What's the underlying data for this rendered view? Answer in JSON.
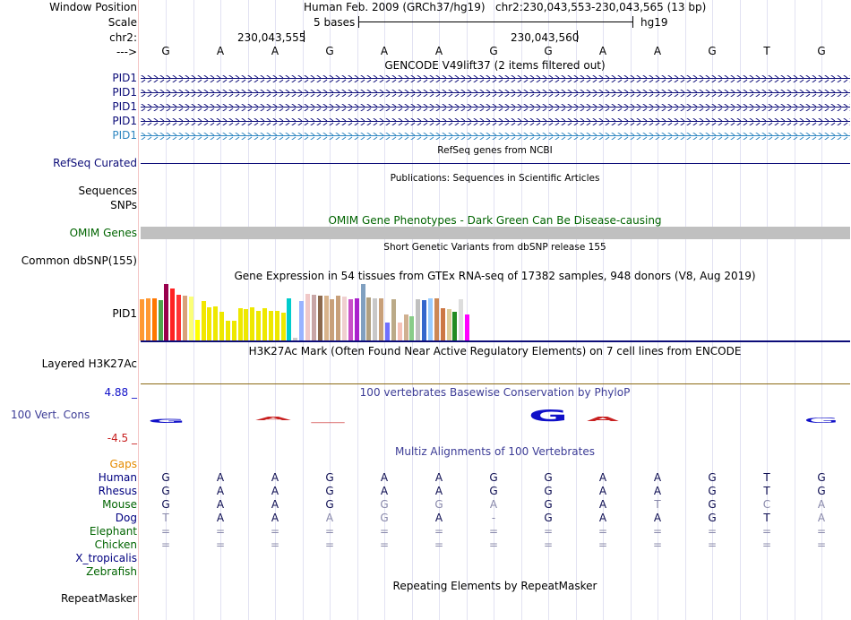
{
  "header": {
    "window_position_label": "Window Position",
    "scale_label": "Scale",
    "chrom_label": "chr2:",
    "arrow_label": "--->",
    "assembly": "Human Feb. 2009 (GRCh37/hg19)",
    "position": "chr2:230,043,553-230,043,565 (13 bp)",
    "scale_text": "5 bases",
    "db": "hg19",
    "coord_1": "230,043,555",
    "coord_2": "230,043,560"
  },
  "sequence": [
    "G",
    "A",
    "A",
    "G",
    "A",
    "A",
    "G",
    "G",
    "A",
    "A",
    "G",
    "T",
    "G"
  ],
  "tracks": {
    "gencode": {
      "title": "GENCODE V49lift37 (2 items filtered out)",
      "genes": [
        "PID1",
        "PID1",
        "PID1",
        "PID1",
        "PID1"
      ]
    },
    "refseq": {
      "title": "RefSeq genes from NCBI",
      "label": "RefSeq Curated"
    },
    "publications": {
      "title": "Publications: Sequences in Scientific Articles",
      "label_1": "Sequences",
      "label_2": "SNPs"
    },
    "omim": {
      "title": "OMIM Gene Phenotypes - Dark Green Can Be Disease-causing",
      "label": "OMIM Genes"
    },
    "dbsnp": {
      "title": "Short Genetic Variants from dbSNP release 155",
      "label": "Common dbSNP(155)"
    },
    "gtex": {
      "title": "Gene Expression in 54 tissues from GTEx RNA-seq of 17382 samples, 948 donors (V8, Aug 2019)",
      "label": "PID1",
      "values": [
        0.72,
        0.74,
        0.74,
        0.7,
        0.98,
        0.9,
        0.8,
        0.78,
        0.76,
        0.36,
        0.68,
        0.58,
        0.6,
        0.5,
        0.34,
        0.34,
        0.56,
        0.54,
        0.58,
        0.52,
        0.56,
        0.52,
        0.52,
        0.48,
        0.74,
        0.04,
        0.68,
        0.82,
        0.8,
        0.78,
        0.78,
        0.72,
        0.78,
        0.76,
        0.72,
        0.74,
        0.98,
        0.75,
        0.74,
        0.74,
        0.32,
        0.72,
        0.32,
        0.46,
        0.42,
        0.72,
        0.7,
        0.74,
        0.74,
        0.56,
        0.54,
        0.5,
        0.72,
        0.46
      ],
      "colors": [
        "#ff9933",
        "#ff9933",
        "#ff7700",
        "#4da64d",
        "#99004d",
        "#ff2222",
        "#ff3333",
        "#d9a07a",
        "#fbff77",
        "#ffff00",
        "#f2e600",
        "#f2e600",
        "#eee800",
        "#eee800",
        "#eee800",
        "#eee800",
        "#eee800",
        "#eee800",
        "#eee800",
        "#eee800",
        "#eee800",
        "#eee800",
        "#eee800",
        "#eee800",
        "#00cccc",
        "#cccccc",
        "#99b3ff",
        "#f0c8c8",
        "#c8a6a6",
        "#8c6a4e",
        "#d9b48c",
        "#c8a07a",
        "#c8a07a",
        "#f0d0d0",
        "#c850c8",
        "#aa22cc",
        "#80a0c0",
        "#b0a080",
        "#c8c8c8",
        "#c8a07a",
        "#7070ff",
        "#bbaa88",
        "#f5c2b8",
        "#d0b090",
        "#88cc88",
        "#c0c0c0",
        "#3366cc",
        "#99ccff",
        "#cc8855",
        "#cc7744",
        "#ddcc99",
        "#228b22",
        "#dddddd",
        "#ff00ff"
      ]
    },
    "h3k27ac": {
      "title": "H3K27Ac Mark (Often Found Near Active Regulatory Elements) on 7 cell lines from ENCODE",
      "label": "Layered H3K27Ac"
    },
    "phylop": {
      "title": "100 vertebrates Basewise Conservation by PhyloP",
      "label": "100 Vert. Cons",
      "max": "4.88 _",
      "min": "-4.5 _"
    },
    "multiz": {
      "title": "Multiz Alignments of 100 Vertebrates",
      "gaps_label": "Gaps",
      "species": [
        {
          "name": "Human",
          "color": "#000080",
          "bases": [
            "G",
            "A",
            "A",
            "G",
            "A",
            "A",
            "G",
            "G",
            "A",
            "A",
            "G",
            "T",
            "G"
          ],
          "light": [
            0,
            0,
            0,
            0,
            0,
            0,
            0,
            0,
            0,
            0,
            0,
            0,
            0
          ]
        },
        {
          "name": "Rhesus",
          "color": "#000080",
          "bases": [
            "G",
            "A",
            "A",
            "G",
            "A",
            "A",
            "G",
            "G",
            "A",
            "A",
            "G",
            "T",
            "G"
          ],
          "light": [
            0,
            0,
            0,
            0,
            0,
            0,
            0,
            0,
            0,
            0,
            0,
            0,
            0
          ]
        },
        {
          "name": "Mouse",
          "color": "#006400",
          "bases": [
            "G",
            "A",
            "A",
            "G",
            "G",
            "G",
            "A",
            "G",
            "A",
            "T",
            "G",
            "C",
            "A"
          ],
          "light": [
            0,
            0,
            0,
            0,
            1,
            1,
            1,
            0,
            0,
            1,
            0,
            1,
            1
          ]
        },
        {
          "name": "Dog",
          "color": "#000080",
          "bases": [
            "T",
            "A",
            "A",
            "A",
            "G",
            "A",
            "-",
            "G",
            "A",
            "A",
            "G",
            "T",
            "A"
          ],
          "light": [
            1,
            0,
            0,
            1,
            1,
            0,
            1,
            0,
            0,
            0,
            0,
            0,
            1
          ]
        },
        {
          "name": "Elephant",
          "color": "#006400",
          "bases": [
            "=",
            "=",
            "=",
            "=",
            "=",
            "=",
            "=",
            "=",
            "=",
            "=",
            "=",
            "=",
            "="
          ],
          "light": [
            1,
            1,
            1,
            1,
            1,
            1,
            1,
            1,
            1,
            1,
            1,
            1,
            1
          ]
        },
        {
          "name": "Chicken",
          "color": "#006400",
          "bases": [
            "=",
            "=",
            "=",
            "=",
            "=",
            "=",
            "=",
            "=",
            "=",
            "=",
            "=",
            "=",
            "="
          ],
          "light": [
            1,
            1,
            1,
            1,
            1,
            1,
            1,
            1,
            1,
            1,
            1,
            1,
            1
          ]
        },
        {
          "name": "X_tropicalis",
          "color": "#000080",
          "bases": [],
          "light": []
        },
        {
          "name": "Zebrafish",
          "color": "#006400",
          "bases": [],
          "light": []
        }
      ]
    },
    "repeatmasker": {
      "title": "Repeating Elements by RepeatMasker",
      "label": "RepeatMasker"
    }
  },
  "colors": {
    "navy": "#000080",
    "green": "#006400",
    "orange": "#e58a00",
    "phylop_blue": "#1010c8",
    "phylop_red": "#c82020"
  }
}
